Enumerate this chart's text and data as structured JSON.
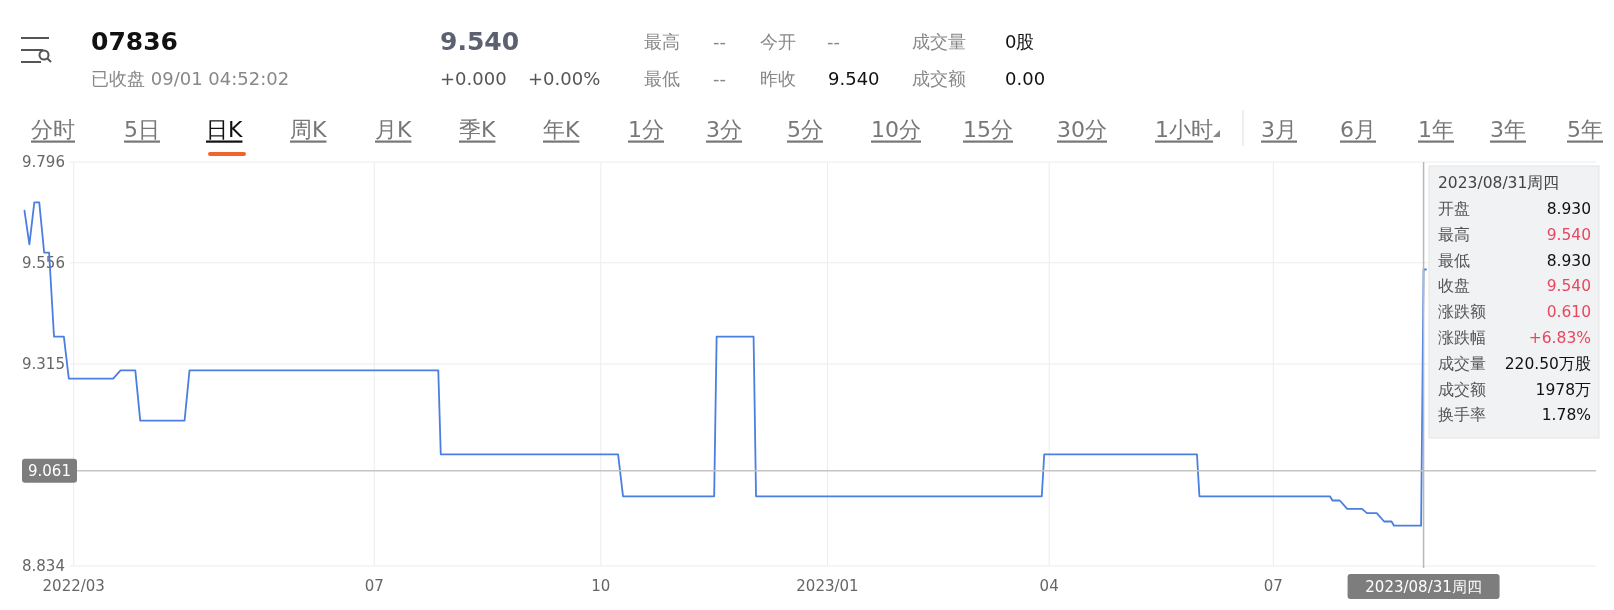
{
  "chart_data": {
    "type": "line",
    "title": "07836",
    "x": [
      "2022-02-09",
      "2022-02-11",
      "2022-02-13",
      "2022-02-15",
      "2022-02-17",
      "2022-02-19",
      "2022-02-21",
      "2022-02-25",
      "2022-02-27",
      "2022-03-17",
      "2022-03-20",
      "2022-03-26",
      "2022-03-28",
      "2022-04-15",
      "2022-04-17",
      "2022-07-27",
      "2022-07-28",
      "2022-10-08",
      "2022-10-10",
      "2022-11-16",
      "2022-11-17",
      "2022-12-02",
      "2022-12-03",
      "2023-03-29",
      "2023-03-30",
      "2023-05-31",
      "2023-06-01",
      "2023-07-24",
      "2023-07-25",
      "2023-07-28",
      "2023-07-31",
      "2023-08-06",
      "2023-08-08",
      "2023-08-12",
      "2023-08-15",
      "2023-08-18",
      "2023-08-19",
      "2023-08-30",
      "2023-08-31",
      "2023-09-01"
    ],
    "values": [
      9.68,
      9.6,
      9.7,
      9.7,
      9.58,
      9.58,
      9.38,
      9.38,
      9.28,
      9.28,
      9.3,
      9.3,
      9.18,
      9.18,
      9.3,
      9.3,
      9.1,
      9.1,
      9.0,
      9.0,
      9.38,
      9.38,
      9.0,
      9.0,
      9.1,
      9.1,
      9.0,
      9.0,
      8.99,
      8.99,
      8.97,
      8.97,
      8.96,
      8.96,
      8.94,
      8.94,
      8.93,
      8.93,
      9.54,
      9.54
    ],
    "color": "#4a7fe0",
    "xlim": [
      "2022-02-08",
      "2023-11-09"
    ],
    "ylim": [
      8.834,
      9.796
    ],
    "xticks": [
      {
        "value": "2022-03-01",
        "label": "2022/03"
      },
      {
        "value": "2022-07-01",
        "label": "07"
      },
      {
        "value": "2022-10-01",
        "label": "10"
      },
      {
        "value": "2023-01-01",
        "label": "2023/01"
      },
      {
        "value": "2023-04-01",
        "label": "04"
      },
      {
        "value": "2023-07-01",
        "label": "07"
      }
    ],
    "yticks": [
      8.834,
      9.315,
      9.556,
      9.796
    ],
    "grid": true,
    "ref_lines": [
      {
        "axis": "y",
        "value": 9.061,
        "label": "9.061",
        "color": "#c4c4c4"
      },
      {
        "axis": "x",
        "value": "2023-08-31",
        "label": "2023/08/31周四",
        "color": "#b8b8b8"
      }
    ],
    "annotations": [
      "已收盘 09/01 04:52:02",
      "9.540",
      "+0.000",
      "+0.00%",
      "最高",
      "--",
      "今开",
      "--",
      "成交量",
      "0股",
      "最低",
      "--",
      "昨收",
      "9.540",
      "成交额",
      "0.00",
      "分时",
      "5日",
      "日K",
      "周K",
      "月K",
      "季K",
      "年K",
      "1分",
      "3分",
      "5分",
      "10分",
      "15分",
      "30分",
      "1小时",
      "3月",
      "6月",
      "1年",
      "3年",
      "5年",
      "2023/08/31周四",
      "开盘",
      "8.930",
      "最高",
      "9.540",
      "最低",
      "8.930",
      "收盘",
      "9.540",
      "涨跌额",
      "0.610",
      "涨跌幅",
      "+6.83%",
      "成交量",
      "220.50万股",
      "成交额",
      "1978万",
      "换手率",
      "1.78%"
    ]
  }
}
